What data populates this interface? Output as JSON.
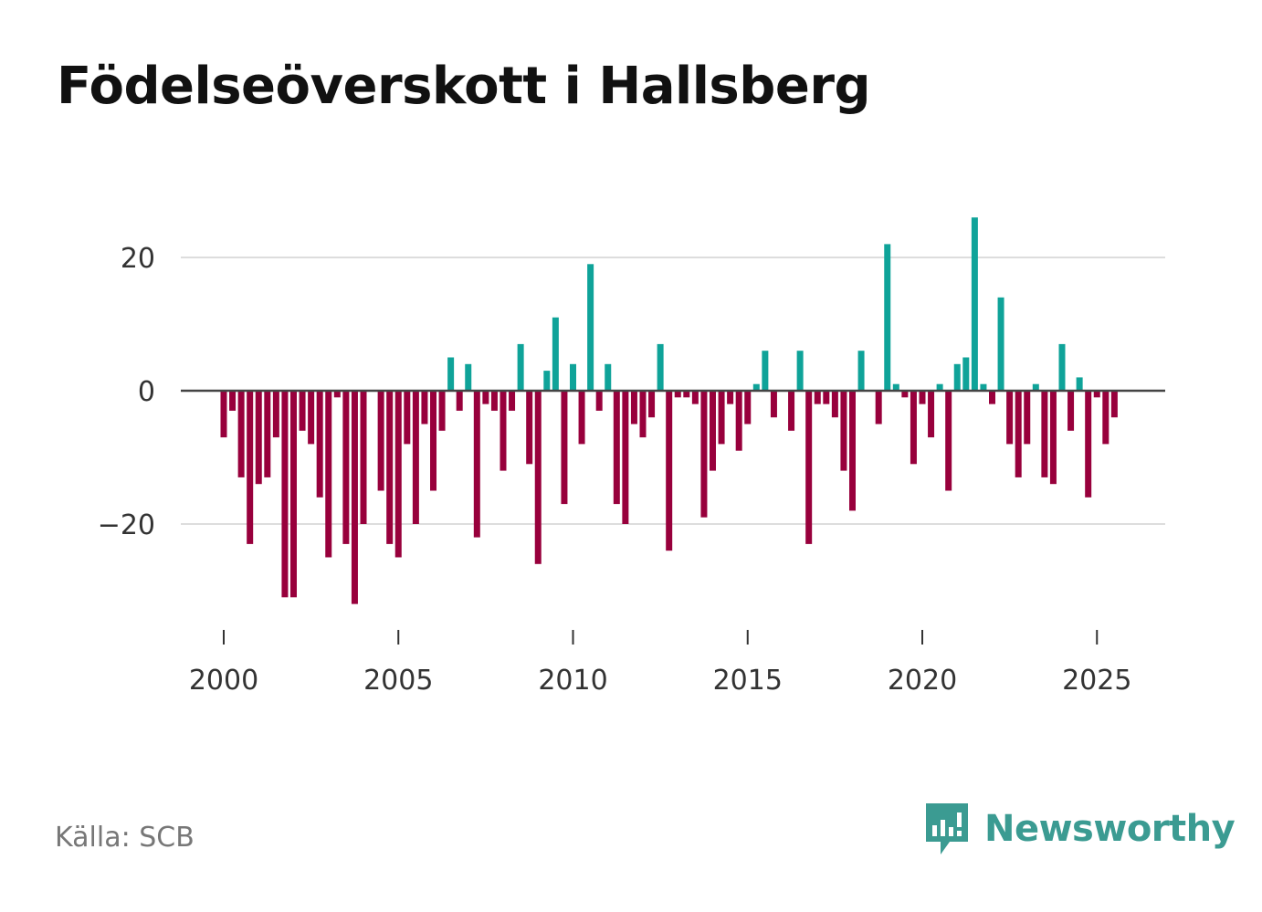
{
  "title": "Födelseöverskott i Hallsberg",
  "source": "Källa: SCB",
  "brand": {
    "name": "Newsworthy",
    "icon": "newsworthy-logo-icon",
    "color": "#3b9b92"
  },
  "colors": {
    "positive": "#0fa399",
    "negative": "#98003c",
    "zero_line": "#444444",
    "grid": "#dddddd"
  },
  "chart_data": {
    "type": "bar",
    "title": "Födelseöverskott i Hallsberg",
    "xlabel": "",
    "ylabel": "",
    "x_ticks": [
      "2000",
      "2005",
      "2010",
      "2015",
      "2020",
      "2025"
    ],
    "y_ticks": [
      {
        "value": 20,
        "label": "20"
      },
      {
        "value": 0,
        "label": "0"
      },
      {
        "value": -20,
        "label": "−20"
      }
    ],
    "ylim": [
      -37,
      32
    ],
    "x_start": 2000.0,
    "x_step": 0.25,
    "grid": true,
    "values": [
      -7,
      -3,
      -13,
      -23,
      -14,
      -13,
      -7,
      -31,
      -31,
      -6,
      -8,
      -16,
      -25,
      -1,
      -23,
      -32,
      -20,
      0,
      -15,
      -23,
      -25,
      -8,
      -20,
      -5,
      -15,
      -6,
      5,
      -3,
      4,
      -22,
      -2,
      -3,
      -12,
      -3,
      7,
      -11,
      -26,
      3,
      11,
      -17,
      4,
      -8,
      19,
      -3,
      4,
      -17,
      -20,
      -5,
      -7,
      -4,
      7,
      -24,
      -1,
      -1,
      -2,
      -19,
      -12,
      -8,
      -2,
      -9,
      -5,
      1,
      6,
      -4,
      0,
      -6,
      6,
      -23,
      -2,
      -2,
      -4,
      -12,
      -18,
      6,
      0,
      -5,
      22,
      1,
      -1,
      -11,
      -2,
      -7,
      1,
      -15,
      4,
      5,
      26,
      1,
      -2,
      14,
      -8,
      -13,
      -8,
      1,
      -13,
      -14,
      7,
      -6,
      2,
      -16,
      -1,
      -8,
      -4
    ]
  }
}
